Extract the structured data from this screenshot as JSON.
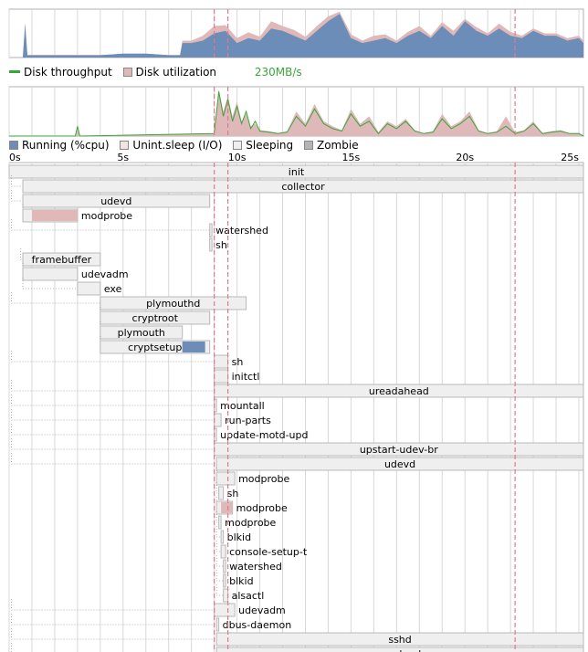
{
  "colors": {
    "cpu": "#6b8db8",
    "io": "#e0b8b8",
    "disk_util": "#dfb9b9",
    "throughput": "#3aa63a",
    "sleeping_fill": "#efefef",
    "sleeping_stroke": "#b8b8b8",
    "zombie": "#b4b4b4",
    "grid": "#d8d8d8",
    "marker": "#e07a8a"
  },
  "disk_legend": {
    "throughput_label": "Disk throughput",
    "utilization_label": "Disk utilization",
    "rate_label": "230MB/s"
  },
  "proc_legend": {
    "running_label": "Running (%cpu)",
    "unint_label": "Unint.sleep (I/O)",
    "sleeping_label": "Sleeping",
    "zombie_label": "Zombie"
  },
  "chart_data": [
    {
      "type": "area",
      "panel": "cpu",
      "x_range": [
        0,
        25.2
      ],
      "ylim": [
        0,
        100
      ],
      "x": [
        0,
        0.6,
        0.7,
        0.8,
        1.5,
        3,
        4,
        5,
        6,
        7,
        7.5,
        7.6,
        8,
        8.5,
        9,
        9.5,
        10,
        10.5,
        11,
        11.5,
        12,
        12.5,
        13,
        13.5,
        14,
        14.5,
        15,
        15.5,
        16,
        16.5,
        17,
        17.5,
        18,
        18.5,
        19,
        19.5,
        20,
        20.5,
        21,
        21.5,
        22,
        22.5,
        23,
        23.5,
        24,
        24.5,
        25,
        25.2
      ],
      "series": [
        {
          "values": [
            0,
            0,
            70,
            5,
            5,
            5,
            5,
            8,
            8,
            5,
            5,
            30,
            30,
            35,
            50,
            55,
            30,
            40,
            35,
            60,
            55,
            45,
            35,
            55,
            75,
            90,
            40,
            30,
            35,
            40,
            30,
            45,
            55,
            40,
            65,
            45,
            75,
            55,
            45,
            60,
            45,
            40,
            55,
            45,
            45,
            35,
            40,
            30
          ]
        },
        {
          "values": [
            0,
            0,
            0,
            0,
            0,
            0,
            0,
            0,
            0,
            0,
            0,
            5,
            5,
            10,
            15,
            12,
            10,
            12,
            8,
            15,
            10,
            12,
            8,
            10,
            10,
            5,
            8,
            5,
            10,
            8,
            5,
            8,
            10,
            5,
            8,
            10,
            5,
            8,
            5,
            10,
            8,
            5,
            5,
            5,
            5,
            5,
            5,
            5
          ]
        }
      ]
    },
    {
      "type": "area",
      "panel": "disk",
      "x_range": [
        0,
        25.2
      ],
      "ylim": [
        0,
        100
      ],
      "x": [
        0,
        2.9,
        3,
        3.1,
        9,
        9.2,
        9.4,
        9.6,
        9.8,
        10,
        10.2,
        10.4,
        10.6,
        10.8,
        11,
        11.4,
        11.8,
        12.2,
        12.6,
        13,
        13.4,
        13.8,
        14.2,
        14.6,
        15,
        15.4,
        15.8,
        16.2,
        16.6,
        17,
        17.4,
        17.8,
        18.2,
        18.6,
        19,
        19.4,
        19.8,
        20.2,
        20.6,
        21,
        21.4,
        21.8,
        22.2,
        22.6,
        23,
        23.4,
        23.8,
        24.2,
        24.6,
        25,
        25.2
      ],
      "series": [
        {
          "values": [
            0,
            0,
            20,
            0,
            5,
            90,
            40,
            75,
            30,
            60,
            25,
            50,
            15,
            30,
            10,
            8,
            5,
            8,
            40,
            20,
            55,
            25,
            15,
            10,
            45,
            20,
            30,
            5,
            25,
            15,
            30,
            10,
            5,
            8,
            35,
            15,
            25,
            40,
            10,
            5,
            8,
            20,
            5,
            10,
            25,
            5,
            8,
            10,
            5,
            5,
            0
          ]
        },
        {
          "values": [
            0,
            0,
            15,
            0,
            5,
            95,
            50,
            80,
            40,
            70,
            30,
            45,
            20,
            25,
            12,
            10,
            6,
            10,
            50,
            25,
            65,
            30,
            20,
            12,
            55,
            25,
            40,
            8,
            30,
            20,
            35,
            12,
            6,
            10,
            45,
            20,
            30,
            50,
            12,
            6,
            10,
            40,
            8,
            12,
            30,
            6,
            10,
            12,
            6,
            6,
            0
          ]
        }
      ]
    },
    {
      "type": "gantt",
      "panel": "processes",
      "x_range": [
        0,
        25.2
      ],
      "x_ticks": [
        "0s",
        "5s",
        "10s",
        "15s",
        "20s",
        "25s"
      ],
      "x_tick_values": [
        0,
        5,
        10,
        15,
        20,
        25
      ],
      "markers": [
        9.0,
        9.6,
        22.2
      ],
      "rows": [
        {
          "name": "init",
          "start": 0,
          "end": 25.2,
          "label_pos": "center",
          "parent_x": null
        },
        {
          "name": "collector",
          "start": 0.6,
          "end": 25.2,
          "label_pos": "center",
          "parent_x": 0.1
        },
        {
          "name": "udevd",
          "start": 0.6,
          "end": 8.8,
          "label_pos": "center",
          "parent_x": 0.1
        },
        {
          "name": "modprobe",
          "start": 0.6,
          "end": 3.0,
          "label_pos": "right",
          "parent_x": 0.6,
          "io": [
            [
              1.0,
              3.0
            ]
          ]
        },
        {
          "name": "watershed",
          "start": 8.8,
          "end": 8.9,
          "label_pos": "right",
          "parent_x": 0.1
        },
        {
          "name": "sh",
          "start": 8.8,
          "end": 8.9,
          "label_pos": "right",
          "parent_x": 8.8
        },
        {
          "name": "framebuffer",
          "start": 0.6,
          "end": 4.0,
          "label_pos": "center",
          "parent_x": 0.5
        },
        {
          "name": "udevadm",
          "start": 0.6,
          "end": 3.0,
          "label_pos": "right",
          "parent_x": 0.6
        },
        {
          "name": "exe",
          "start": 3.0,
          "end": 4.0,
          "label_pos": "right",
          "parent_x": 0.6
        },
        {
          "name": "plymouthd",
          "start": 4.0,
          "end": 10.4,
          "label_pos": "center",
          "parent_x": 0.1
        },
        {
          "name": "cryptroot",
          "start": 4.0,
          "end": 8.8,
          "label_pos": "center",
          "parent_x": 4.0
        },
        {
          "name": "plymouth",
          "start": 4.0,
          "end": 7.6,
          "label_pos": "center",
          "parent_x": 4.0
        },
        {
          "name": "cryptsetup",
          "start": 4.0,
          "end": 8.8,
          "label_pos": "center",
          "parent_x": 4.0,
          "cpu": [
            [
              7.6,
              8.6
            ]
          ]
        },
        {
          "name": "sh",
          "start": 9.0,
          "end": 9.6,
          "label_pos": "right",
          "parent_x": 0.1
        },
        {
          "name": "initctl",
          "start": 9.0,
          "end": 9.6,
          "label_pos": "right",
          "parent_x": 9.0
        },
        {
          "name": "ureadahead",
          "start": 9.0,
          "end": 25.2,
          "label_pos": "center",
          "parent_x": 0.1
        },
        {
          "name": "mountall",
          "start": 9.0,
          "end": 9.1,
          "label_pos": "right",
          "parent_x": 0.1
        },
        {
          "name": "run-parts",
          "start": 9.0,
          "end": 9.3,
          "label_pos": "right",
          "parent_x": 0.1
        },
        {
          "name": "update-motd-upd",
          "start": 9.0,
          "end": 9.1,
          "label_pos": "right",
          "parent_x": 0.1
        },
        {
          "name": "upstart-udev-br",
          "start": 9.0,
          "end": 25.2,
          "label_pos": "center",
          "parent_x": 0.1
        },
        {
          "name": "udevd",
          "start": 9.1,
          "end": 25.2,
          "label_pos": "center",
          "parent_x": 0.1
        },
        {
          "name": "modprobe",
          "start": 9.1,
          "end": 9.9,
          "label_pos": "right",
          "parent_x": 9.1
        },
        {
          "name": "sh",
          "start": 9.2,
          "end": 9.4,
          "label_pos": "right",
          "parent_x": 9.1
        },
        {
          "name": "modprobe",
          "start": 9.1,
          "end": 9.8,
          "label_pos": "right",
          "parent_x": 9.1,
          "io": [
            [
              9.3,
              9.8
            ]
          ]
        },
        {
          "name": "modprobe",
          "start": 9.2,
          "end": 9.3,
          "label_pos": "right",
          "parent_x": 9.1
        },
        {
          "name": "blkid",
          "start": 9.3,
          "end": 9.4,
          "label_pos": "right",
          "parent_x": 9.1
        },
        {
          "name": "console-setup-t",
          "start": 9.3,
          "end": 9.5,
          "label_pos": "right",
          "parent_x": 9.1
        },
        {
          "name": "watershed",
          "start": 9.4,
          "end": 9.5,
          "label_pos": "right",
          "parent_x": 9.1
        },
        {
          "name": "blkid",
          "start": 9.4,
          "end": 9.5,
          "label_pos": "right",
          "parent_x": 9.1
        },
        {
          "name": "alsactl",
          "start": 9.4,
          "end": 9.6,
          "label_pos": "right",
          "parent_x": 9.1
        },
        {
          "name": "udevadm",
          "start": 9.0,
          "end": 9.9,
          "label_pos": "right",
          "parent_x": 0.1
        },
        {
          "name": "dbus-daemon",
          "start": 9.1,
          "end": 9.2,
          "label_pos": "right",
          "parent_x": 0.1
        },
        {
          "name": "sshd",
          "start": 9.1,
          "end": 25.2,
          "label_pos": "center",
          "parent_x": 0.1
        },
        {
          "name": "rsyslogd",
          "start": 9.1,
          "end": 25.2,
          "label_pos": "center",
          "parent_x": 0.1
        }
      ]
    }
  ]
}
